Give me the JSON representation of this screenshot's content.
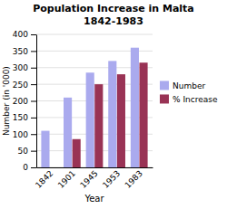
{
  "chart_data": {
    "type": "bar",
    "title": "Population Increase in Malta",
    "subtitle": "1842-1983",
    "categories": [
      "1842",
      "1901",
      "1945",
      "1953",
      "1983"
    ],
    "series": [
      {
        "name": "Number",
        "color": "#aaaaee",
        "values": [
          110,
          210,
          285,
          320,
          360
        ]
      },
      {
        "name": "% Increase",
        "color": "#993355",
        "values": [
          0,
          85,
          250,
          280,
          315
        ]
      }
    ],
    "xlabel": "Year",
    "ylabel": "Number (in '000)",
    "ylim": [
      0,
      400
    ],
    "yticks": [
      0,
      50,
      100,
      150,
      200,
      250,
      300,
      350,
      400
    ],
    "grid": true,
    "legend": "right"
  }
}
